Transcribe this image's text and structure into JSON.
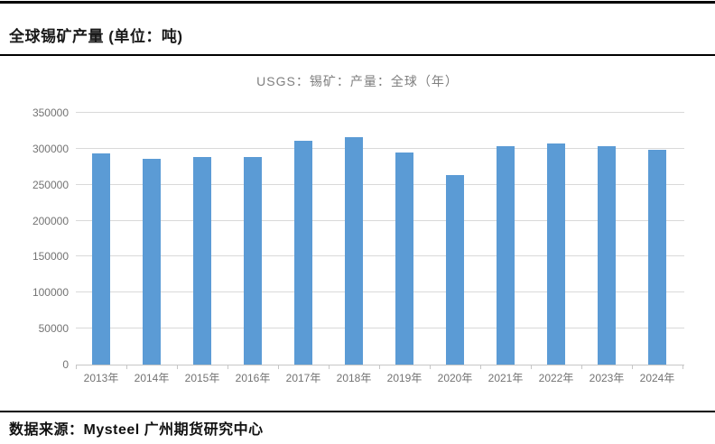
{
  "header": {
    "title": "全球锡矿产量 (单位：吨)"
  },
  "footer": {
    "source_label": "数据来源：Mysteel 广州期货研究中心"
  },
  "colors": {
    "bar": "#5b9bd5",
    "gridline": "#d9d9d9",
    "axis_line": "#c6c6c6",
    "axis_text": "#737373",
    "subtitle_text": "#7f7f7f",
    "rule": "#000000"
  },
  "chart_data": {
    "type": "bar",
    "title": "USGS：锡矿：产量：全球（年）",
    "categories": [
      "2013年",
      "2014年",
      "2015年",
      "2016年",
      "2017年",
      "2018年",
      "2019年",
      "2020年",
      "2021年",
      "2022年",
      "2023年",
      "2024年"
    ],
    "values": [
      293000,
      286000,
      289000,
      289000,
      311000,
      316000,
      295000,
      263000,
      304000,
      307000,
      304000,
      299000
    ],
    "xlabel": "",
    "ylabel": "",
    "ylim": [
      0,
      350000
    ],
    "ytick_step": 50000,
    "ytick_labels": [
      "0",
      "50000",
      "100000",
      "150000",
      "200000",
      "250000",
      "300000",
      "350000"
    ],
    "grid": true,
    "legend_position": "none",
    "bar_color": "#5b9bd5"
  }
}
